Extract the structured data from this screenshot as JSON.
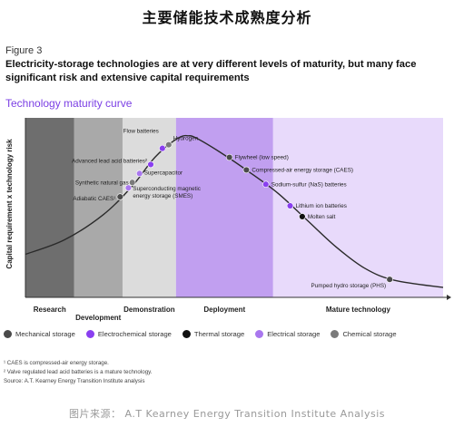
{
  "page_title": "主要储能技术成熟度分析",
  "figure_label": "Figure 3",
  "headline": "Electricity-storage technologies are at very different levels of maturity, but many face significant risk and extensive capital requirements",
  "chart_title": "Technology maturity curve",
  "source_credit": "图片来源： A.T Kearney Energy Transition Institute Analysis",
  "notes": [
    "¹ CAES is compressed-air energy storage.",
    "² Valve regulated lead acid batteries is a mature technology.",
    "Source: A.T. Kearney Energy Transition Institute analysis"
  ],
  "legend": [
    {
      "label": "Mechanical storage",
      "color": "#4a4a4a"
    },
    {
      "label": "Electrochemical storage",
      "color": "#8a3ff0"
    },
    {
      "label": "Thermal storage",
      "color": "#111111"
    },
    {
      "label": "Electrical storage",
      "color": "#a977ee"
    },
    {
      "label": "Chemical storage",
      "color": "#7a7a7a"
    }
  ],
  "chart_data": {
    "type": "scatter",
    "title": "Technology maturity curve",
    "ylabel": "Capital requirement x technology risk",
    "xlabel": "",
    "stages": [
      {
        "label": "Research",
        "start": 0,
        "end": 1,
        "color": "#6e6e6e"
      },
      {
        "label": "Development",
        "start": 1,
        "end": 2,
        "color": "#a9a9a9"
      },
      {
        "label": "Demonstration",
        "start": 2,
        "end": 3.1,
        "color": "#dcdcdc"
      },
      {
        "label": "Deployment",
        "start": 3.1,
        "end": 5.1,
        "color": "#c19ff0"
      },
      {
        "label": "Mature technology",
        "start": 5.1,
        "end": 8.6,
        "color": "#e8dafb"
      }
    ],
    "curve": [
      [
        0,
        2.4
      ],
      [
        0.8,
        3.2
      ],
      [
        1.6,
        4.6
      ],
      [
        2.2,
        6.2
      ],
      [
        2.6,
        7.6
      ],
      [
        2.9,
        8.4
      ],
      [
        3.2,
        8.95
      ],
      [
        3.35,
        9.0
      ],
      [
        3.5,
        8.9
      ],
      [
        4.0,
        8.1
      ],
      [
        4.6,
        7.0
      ],
      [
        5.2,
        5.8
      ],
      [
        5.8,
        4.3
      ],
      [
        6.4,
        2.8
      ],
      [
        7.0,
        1.6
      ],
      [
        7.6,
        0.95
      ],
      [
        8.6,
        0.55
      ]
    ],
    "xlim": [
      0,
      8.6
    ],
    "ylim": [
      0,
      10
    ],
    "points": [
      {
        "label": "Flow batteries",
        "x": 2.82,
        "y": 8.3,
        "category": "Electrochemical storage"
      },
      {
        "label": "Hydrogen",
        "x": 2.95,
        "y": 8.5,
        "category": "Chemical storage"
      },
      {
        "label": "Advanced lead acid batteries²",
        "x": 2.58,
        "y": 7.4,
        "category": "Electrochemical storage"
      },
      {
        "label": "Supercapacitor",
        "x": 2.35,
        "y": 6.9,
        "category": "Electrical storage"
      },
      {
        "label": "Synthetic natural gas",
        "x": 2.2,
        "y": 6.4,
        "category": "Chemical storage"
      },
      {
        "label": "Superconducting magnetic energy storage (SMES)",
        "x": 2.12,
        "y": 6.1,
        "category": "Electrical storage"
      },
      {
        "label": "Adiabatic CAES¹",
        "x": 1.95,
        "y": 5.6,
        "category": "Mechanical storage"
      },
      {
        "label": "Flywheel (low speed)",
        "x": 4.2,
        "y": 7.8,
        "category": "Mechanical storage"
      },
      {
        "label": "Compressed-air energy storage (CAES)",
        "x": 4.55,
        "y": 7.1,
        "category": "Mechanical storage"
      },
      {
        "label": "Sodium-sulfur (NaS) batteries",
        "x": 4.95,
        "y": 6.3,
        "category": "Electrochemical storage"
      },
      {
        "label": "Lithium ion batteries",
        "x": 5.45,
        "y": 5.1,
        "category": "Electrochemical storage"
      },
      {
        "label": "Molten salt",
        "x": 5.7,
        "y": 4.5,
        "category": "Thermal storage"
      },
      {
        "label": "Pumped hydro storage (PHS)",
        "x": 7.5,
        "y": 1.0,
        "category": "Mechanical storage"
      }
    ]
  }
}
